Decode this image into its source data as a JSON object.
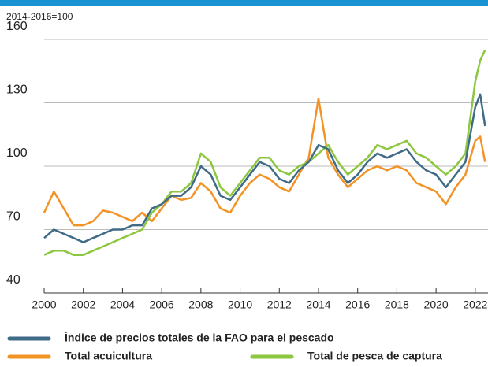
{
  "chart_data": {
    "type": "line",
    "y_label": "2014-2016=100",
    "x": [
      2000,
      2000.5,
      2001,
      2001.5,
      2002,
      2002.5,
      2003,
      2003.5,
      2004,
      2004.5,
      2005,
      2005.5,
      2006,
      2006.5,
      2007,
      2007.5,
      2008,
      2008.5,
      2009,
      2009.5,
      2010,
      2010.5,
      2011,
      2011.5,
      2012,
      2012.5,
      2013,
      2013.5,
      2014,
      2014.5,
      2015,
      2015.5,
      2016,
      2016.5,
      2017,
      2017.5,
      2018,
      2018.5,
      2019,
      2019.5,
      2020,
      2020.5,
      2021,
      2021.5,
      2022,
      2022.25,
      2022.5
    ],
    "series": [
      {
        "name": "Total acuicultura",
        "color": "#f39325",
        "values": [
          78,
          88,
          80,
          72,
          72,
          74,
          79,
          78,
          76,
          74,
          78,
          74,
          80,
          86,
          84,
          85,
          92,
          88,
          80,
          78,
          86,
          92,
          96,
          94,
          90,
          88,
          96,
          104,
          132,
          104,
          96,
          90,
          94,
          98,
          100,
          98,
          100,
          98,
          92,
          90,
          88,
          82,
          90,
          96,
          112,
          114,
          102
        ]
      },
      {
        "name": "Total de pesca de captura",
        "color": "#8dc63f",
        "values": [
          58,
          60,
          60,
          58,
          58,
          60,
          62,
          64,
          66,
          68,
          70,
          78,
          82,
          88,
          88,
          92,
          106,
          102,
          90,
          86,
          92,
          98,
          104,
          104,
          98,
          96,
          100,
          102,
          106,
          110,
          102,
          96,
          100,
          104,
          110,
          108,
          110,
          112,
          106,
          104,
          100,
          96,
          100,
          106,
          140,
          150,
          155
        ]
      },
      {
        "name": "Índice de precios totales de la FAO para el pescado",
        "color": "#3f6b87",
        "values": [
          66,
          70,
          68,
          66,
          64,
          66,
          68,
          70,
          70,
          72,
          72,
          80,
          82,
          86,
          86,
          90,
          100,
          96,
          86,
          84,
          90,
          96,
          102,
          100,
          94,
          92,
          98,
          102,
          110,
          108,
          98,
          92,
          96,
          102,
          106,
          104,
          106,
          108,
          102,
          98,
          96,
          90,
          96,
          102,
          128,
          134,
          119
        ]
      }
    ],
    "xlim": [
      2000,
      2022.65
    ],
    "xticks": [
      2000,
      2002,
      2004,
      2006,
      2008,
      2010,
      2012,
      2014,
      2016,
      2018,
      2020,
      2022
    ],
    "ylim": [
      40,
      160
    ],
    "yticks": [
      40,
      70,
      100,
      130,
      160
    ],
    "grid": true
  }
}
